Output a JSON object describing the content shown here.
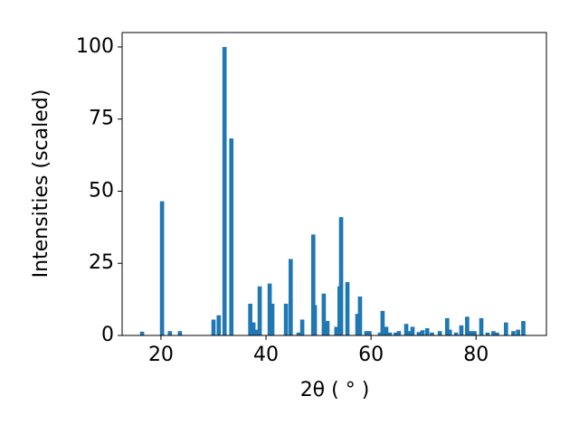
{
  "chart_data": {
    "type": "bar",
    "xlabel": "2θ ( ° )",
    "ylabel": "Intensities (scaled)",
    "x": [
      16.4,
      20.2,
      21.7,
      23.6,
      30,
      31,
      32.1,
      33.4,
      37,
      37.6,
      38.1,
      38.8,
      40.7,
      41.2,
      43.8,
      44.7,
      46.2,
      46.9,
      49,
      49.3,
      51,
      51.7,
      53.4,
      54,
      54.3,
      55.5,
      57.4,
      57.9,
      59.1,
      59.7,
      61.7,
      62.2,
      62.9,
      63.6,
      64.7,
      65.3,
      66.7,
      67.2,
      67.9,
      69.1,
      69.8,
      70.7,
      71.6,
      73.1,
      74.5,
      75,
      76.2,
      77.2,
      78.3,
      79,
      79.7,
      81,
      82.2,
      83.3,
      84,
      85.7,
      87.1,
      88,
      89
    ],
    "values": [
      1.3,
      46.5,
      1.5,
      1.5,
      5.5,
      7,
      100,
      68.3,
      11,
      4.5,
      2,
      17,
      18,
      11,
      11,
      26.5,
      1,
      5.5,
      35,
      10.5,
      14.5,
      5,
      3,
      17,
      41,
      18.5,
      7.5,
      13.5,
      1.5,
      1.5,
      1,
      8.5,
      3,
      1,
      1,
      1.5,
      4,
      1.5,
      3,
      1.2,
      1.8,
      2.5,
      1,
      1.5,
      6,
      2,
      1,
      3.5,
      6.5,
      1.5,
      1.5,
      6,
      1,
      1.5,
      1,
      4.5,
      1.5,
      2,
      5
    ],
    "color": "#1f77b4",
    "xlim": [
      12.6,
      93.4
    ],
    "xticks": [
      20,
      40,
      60,
      80
    ],
    "ylim": [
      0,
      105
    ],
    "yticks": [
      0,
      25,
      50,
      75,
      100
    ]
  }
}
